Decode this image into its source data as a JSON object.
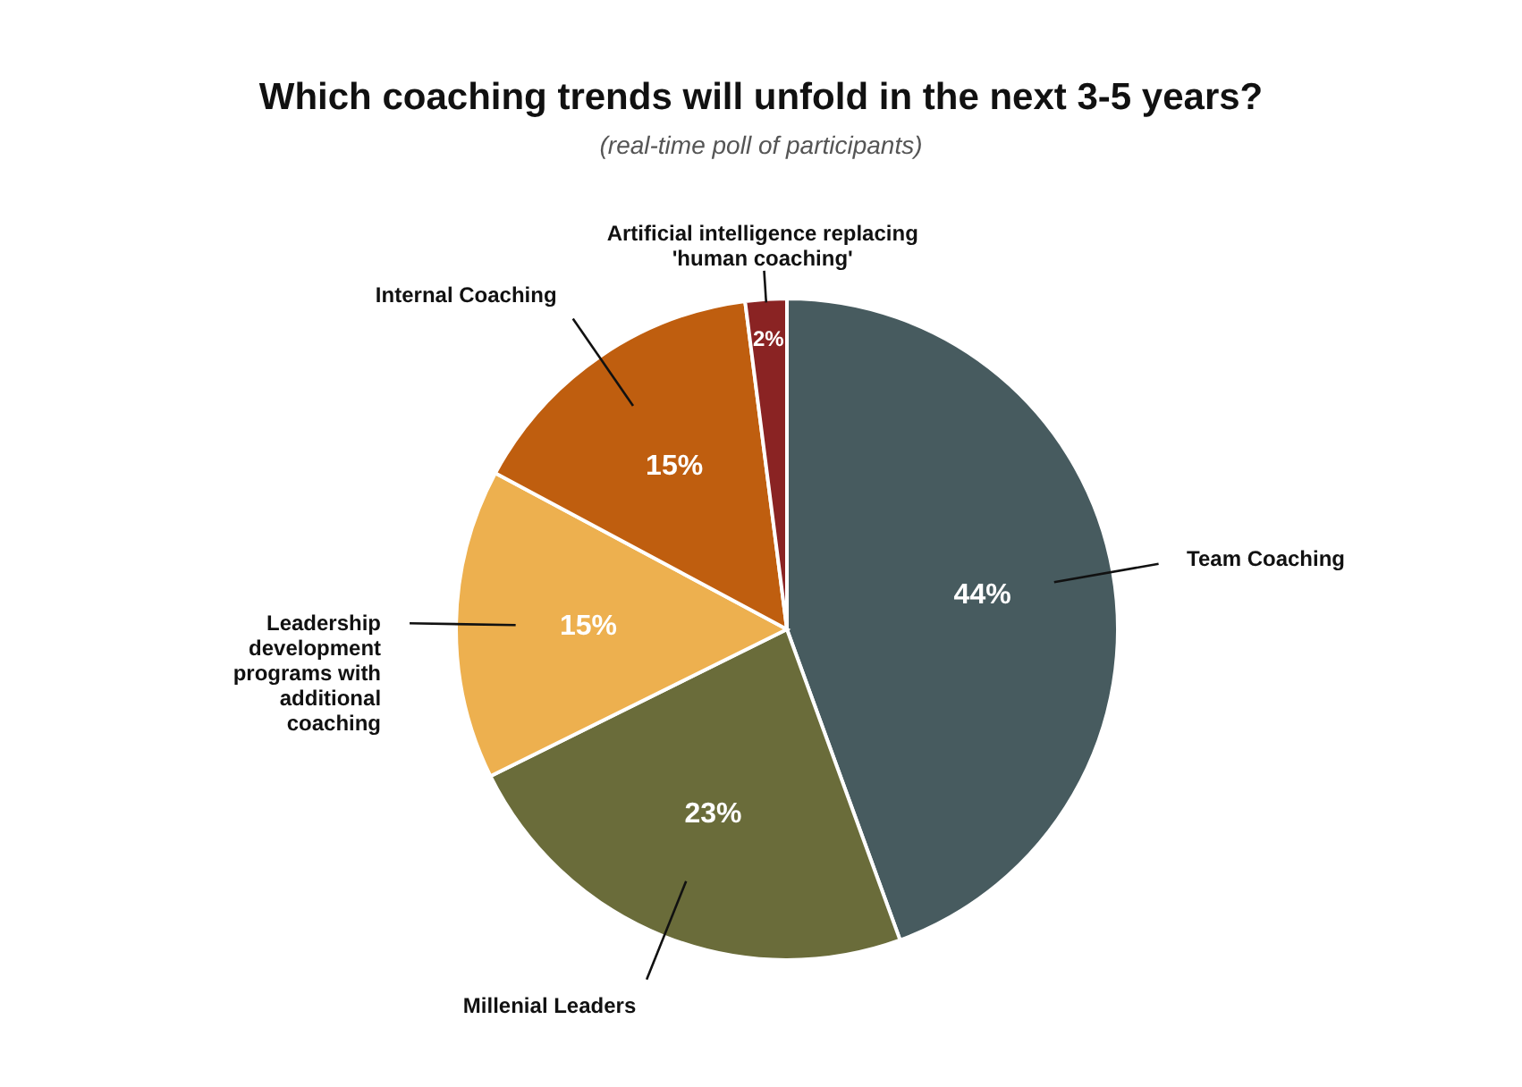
{
  "chart_data": {
    "type": "pie",
    "title": "Which coaching trends will unfold in the next 3-5 years?",
    "subtitle": "(real-time poll of participants)",
    "categories": [
      "Team Coaching",
      "Millenial Leaders",
      "Leadership development programs with additional coaching",
      "Internal Coaching",
      "Artificial intelligence replacing 'human coaching'"
    ],
    "values": [
      44,
      23,
      15,
      15,
      2
    ],
    "colors": [
      "#475b5f",
      "#6a6c3a",
      "#edb04f",
      "#bf5e0f",
      "#8a2323"
    ],
    "value_labels": [
      "44%",
      "23%",
      "15%",
      "15%",
      "2%"
    ]
  }
}
